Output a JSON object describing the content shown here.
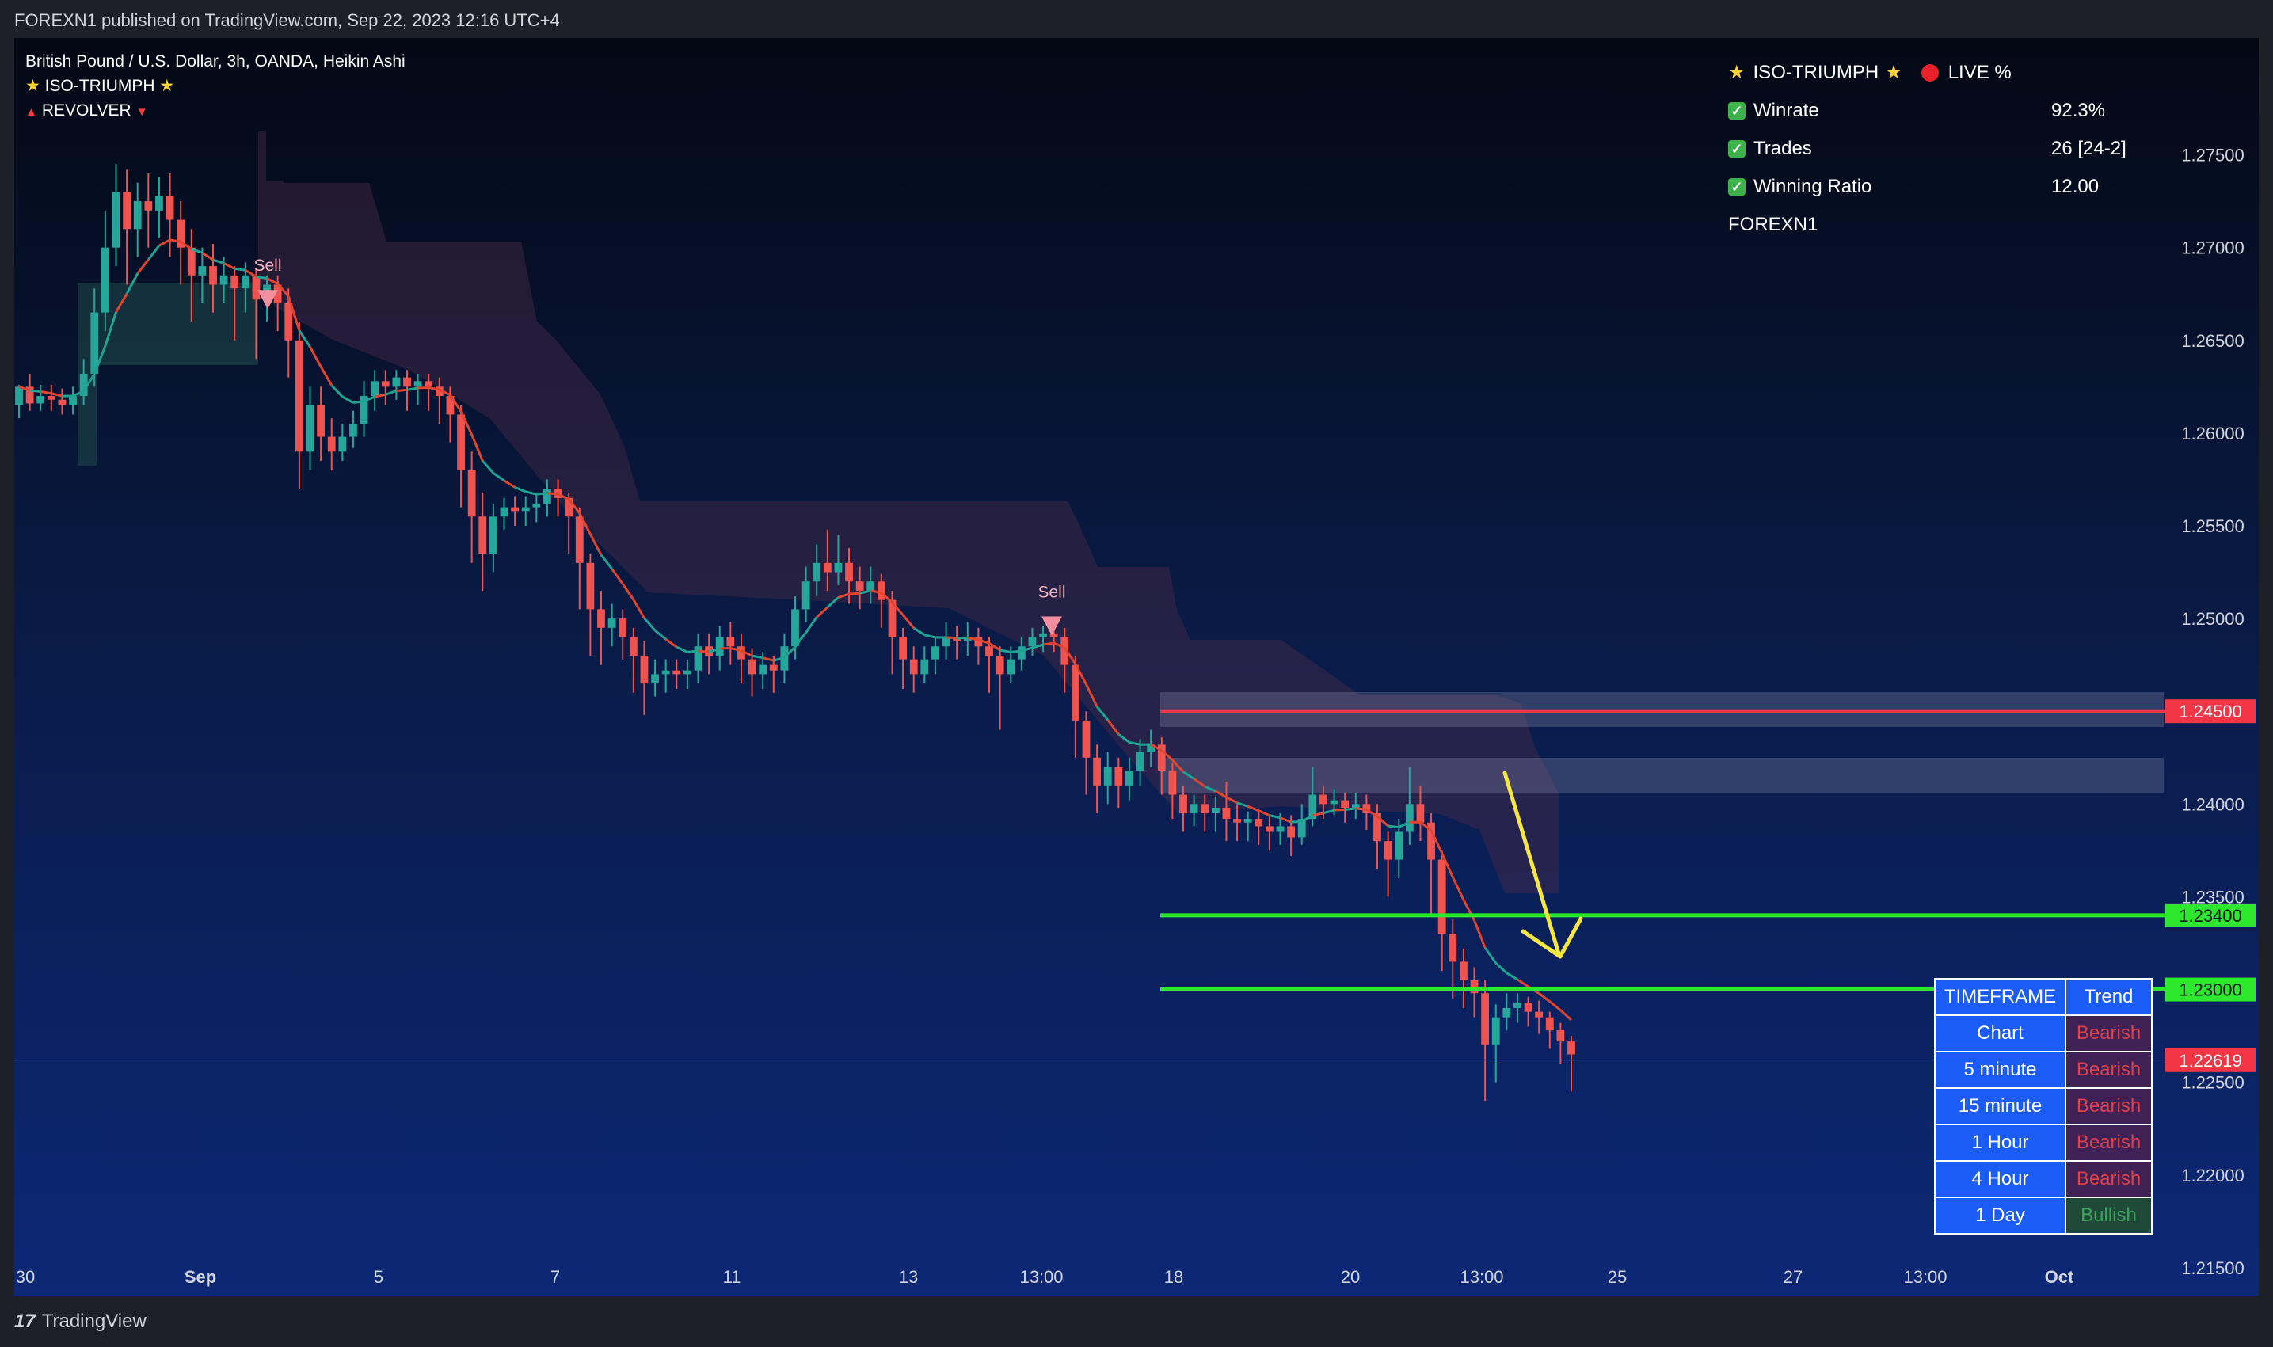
{
  "header": {
    "published": "FOREXN1 published on TradingView.com, Sep 22, 2023 12:16 UTC+4"
  },
  "legend": {
    "symbol": "British Pound / U.S. Dollar, 3h, OANDA, Heikin Ashi",
    "indicator_1": "ISO-TRIUMPH",
    "indicator_2": "REVOLVER"
  },
  "stats": {
    "title": "ISO-TRIUMPH",
    "live_label": "LIVE %",
    "rows": [
      {
        "label": "Winrate",
        "value": "92.3%"
      },
      {
        "label": "Trades",
        "value": "26 [24-2]"
      },
      {
        "label": "Winning Ratio",
        "value": "12.00"
      }
    ],
    "author": "FOREXN1"
  },
  "trend_table": {
    "headers": [
      "TIMEFRAME",
      "Trend"
    ],
    "rows": [
      {
        "tf": "Chart",
        "trend": "Bearish"
      },
      {
        "tf": "5 minute",
        "trend": "Bearish"
      },
      {
        "tf": "15 minute",
        "trend": "Bearish"
      },
      {
        "tf": "1 Hour",
        "trend": "Bearish"
      },
      {
        "tf": "4 Hour",
        "trend": "Bearish"
      },
      {
        "tf": "1 Day",
        "trend": "Bullish"
      }
    ]
  },
  "footer": {
    "brand": "TradingView",
    "brand_mark": "17"
  },
  "colors": {
    "bull": "#26a69a",
    "bear": "#ef5350",
    "resistance": "#f23645",
    "support": "#2ee830",
    "arrow": "#f5e642"
  },
  "chart_data": {
    "type": "line",
    "series_style": "heikin ashi candlesticks",
    "price_ticks": [
      "1.27500",
      "1.27000",
      "1.26500",
      "1.26000",
      "1.25500",
      "1.25000",
      "1.24000",
      "1.23500",
      "1.22500",
      "1.22000",
      "1.21500"
    ],
    "x_ticks": [
      "30",
      "Sep",
      "5",
      "7",
      "11",
      "13",
      "13:00",
      "18",
      "20",
      "13:00",
      "25",
      "27",
      "13:00",
      "Oct"
    ],
    "ylim": [
      1.2135,
      1.2813
    ],
    "horizontal_levels": [
      {
        "price": 1.245,
        "label": "1.24500",
        "color": "#f23645"
      },
      {
        "price": 1.234,
        "label": "1.23400",
        "color": "#2ee830"
      },
      {
        "price": 1.23,
        "label": "1.23000",
        "color": "#2ee830"
      }
    ],
    "current_price": {
      "price": 1.22619,
      "label": "1.22619"
    },
    "signals": [
      {
        "label": "Sell",
        "date": "Sep 2",
        "price": 1.2672
      },
      {
        "label": "Sell",
        "date": "Sep 13",
        "price": 1.2496
      }
    ],
    "candles": [
      [
        1.2615,
        1.2625,
        1.2608,
        1.2626
      ],
      [
        1.2625,
        1.2616,
        1.2612,
        1.2632
      ],
      [
        1.2616,
        1.262,
        1.2612,
        1.2626
      ],
      [
        1.262,
        1.2618,
        1.2612,
        1.2626
      ],
      [
        1.2618,
        1.2615,
        1.261,
        1.2624
      ],
      [
        1.2615,
        1.262,
        1.261,
        1.2625
      ],
      [
        1.262,
        1.2632,
        1.2615,
        1.264
      ],
      [
        1.2632,
        1.2665,
        1.2625,
        1.2678
      ],
      [
        1.2665,
        1.27,
        1.2655,
        1.272
      ],
      [
        1.27,
        1.273,
        1.269,
        1.2745
      ],
      [
        1.273,
        1.271,
        1.268,
        1.2742
      ],
      [
        1.271,
        1.2725,
        1.2695,
        1.2735
      ],
      [
        1.2725,
        1.272,
        1.27,
        1.274
      ],
      [
        1.272,
        1.2728,
        1.2705,
        1.2738
      ],
      [
        1.2728,
        1.2715,
        1.2695,
        1.274
      ],
      [
        1.2715,
        1.27,
        1.268,
        1.2725
      ],
      [
        1.27,
        1.2685,
        1.266,
        1.271
      ],
      [
        1.2685,
        1.269,
        1.267,
        1.27
      ],
      [
        1.269,
        1.268,
        1.2665,
        1.2702
      ],
      [
        1.268,
        1.2685,
        1.267,
        1.2695
      ],
      [
        1.2685,
        1.2678,
        1.265,
        1.269
      ],
      [
        1.2678,
        1.2685,
        1.2665,
        1.2692
      ],
      [
        1.2685,
        1.2672,
        1.264,
        1.2688
      ],
      [
        1.2672,
        1.268,
        1.266,
        1.2685
      ],
      [
        1.268,
        1.267,
        1.2655,
        1.2685
      ],
      [
        1.267,
        1.265,
        1.263,
        1.2678
      ],
      [
        1.265,
        1.259,
        1.257,
        1.266
      ],
      [
        1.259,
        1.2615,
        1.258,
        1.2625
      ],
      [
        1.2615,
        1.2598,
        1.2585,
        1.2625
      ],
      [
        1.2598,
        1.259,
        1.258,
        1.2608
      ],
      [
        1.259,
        1.2598,
        1.2585,
        1.2605
      ],
      [
        1.2598,
        1.2605,
        1.2592,
        1.2612
      ],
      [
        1.2605,
        1.262,
        1.2598,
        1.2628
      ],
      [
        1.262,
        1.2628,
        1.2612,
        1.2634
      ],
      [
        1.2628,
        1.2625,
        1.2615,
        1.2634
      ],
      [
        1.2625,
        1.263,
        1.2618,
        1.2634
      ],
      [
        1.263,
        1.2625,
        1.2612,
        1.2634
      ],
      [
        1.2625,
        1.2628,
        1.2615,
        1.2632
      ],
      [
        1.2628,
        1.2625,
        1.2612,
        1.2632
      ],
      [
        1.2625,
        1.262,
        1.2605,
        1.263
      ],
      [
        1.262,
        1.261,
        1.2595,
        1.2625
      ],
      [
        1.261,
        1.258,
        1.256,
        1.2615
      ],
      [
        1.258,
        1.2555,
        1.253,
        1.259
      ],
      [
        1.2555,
        1.2535,
        1.2515,
        1.2568
      ],
      [
        1.2535,
        1.2555,
        1.2525,
        1.2562
      ],
      [
        1.2555,
        1.256,
        1.2548,
        1.2565
      ],
      [
        1.256,
        1.2558,
        1.255,
        1.2566
      ],
      [
        1.2558,
        1.256,
        1.255,
        1.2566
      ],
      [
        1.256,
        1.2562,
        1.2552,
        1.2568
      ],
      [
        1.2562,
        1.257,
        1.2555,
        1.2575
      ],
      [
        1.257,
        1.2565,
        1.2555,
        1.2575
      ],
      [
        1.2565,
        1.2555,
        1.2535,
        1.2568
      ],
      [
        1.2555,
        1.253,
        1.2505,
        1.256
      ],
      [
        1.253,
        1.2505,
        1.248,
        1.2535
      ],
      [
        1.2505,
        1.2495,
        1.2475,
        1.2515
      ],
      [
        1.2495,
        1.25,
        1.2485,
        1.2508
      ],
      [
        1.25,
        1.249,
        1.2478,
        1.2505
      ],
      [
        1.249,
        1.248,
        1.246,
        1.2495
      ],
      [
        1.248,
        1.2465,
        1.2448,
        1.2488
      ],
      [
        1.2465,
        1.247,
        1.2458,
        1.2478
      ],
      [
        1.247,
        1.2472,
        1.246,
        1.2478
      ],
      [
        1.2472,
        1.247,
        1.2462,
        1.2478
      ],
      [
        1.247,
        1.2472,
        1.2462,
        1.2478
      ],
      [
        1.2472,
        1.2485,
        1.2465,
        1.2492
      ],
      [
        1.2485,
        1.248,
        1.247,
        1.2492
      ],
      [
        1.248,
        1.249,
        1.2472,
        1.2496
      ],
      [
        1.249,
        1.2485,
        1.2475,
        1.2498
      ],
      [
        1.2485,
        1.2478,
        1.2465,
        1.2492
      ],
      [
        1.2478,
        1.247,
        1.2458,
        1.2484
      ],
      [
        1.247,
        1.2475,
        1.2462,
        1.2482
      ],
      [
        1.2475,
        1.2472,
        1.246,
        1.248
      ],
      [
        1.2472,
        1.2485,
        1.2465,
        1.2492
      ],
      [
        1.2485,
        1.2505,
        1.2478,
        1.2512
      ],
      [
        1.2505,
        1.252,
        1.2498,
        1.2528
      ],
      [
        1.252,
        1.253,
        1.2512,
        1.254
      ],
      [
        1.253,
        1.2525,
        1.2515,
        1.2548
      ],
      [
        1.2525,
        1.253,
        1.2518,
        1.2545
      ],
      [
        1.253,
        1.252,
        1.2508,
        1.2538
      ],
      [
        1.252,
        1.2515,
        1.2505,
        1.2528
      ],
      [
        1.2515,
        1.252,
        1.2508,
        1.2528
      ],
      [
        1.252,
        1.251,
        1.2495,
        1.2524
      ],
      [
        1.251,
        1.249,
        1.247,
        1.2515
      ],
      [
        1.249,
        1.2478,
        1.2462,
        1.2495
      ],
      [
        1.2478,
        1.247,
        1.246,
        1.2485
      ],
      [
        1.247,
        1.2478,
        1.2465,
        1.2485
      ],
      [
        1.2478,
        1.2485,
        1.247,
        1.249
      ],
      [
        1.2485,
        1.249,
        1.2478,
        1.2498
      ],
      [
        1.249,
        1.2488,
        1.2478,
        1.2496
      ],
      [
        1.2488,
        1.249,
        1.248,
        1.2498
      ],
      [
        1.249,
        1.2485,
        1.2475,
        1.2495
      ],
      [
        1.2485,
        1.248,
        1.246,
        1.249
      ],
      [
        1.248,
        1.247,
        1.244,
        1.2485
      ],
      [
        1.247,
        1.2478,
        1.2465,
        1.2485
      ],
      [
        1.2478,
        1.2485,
        1.2472,
        1.249
      ],
      [
        1.2485,
        1.249,
        1.248,
        1.2495
      ],
      [
        1.249,
        1.2492,
        1.2482,
        1.2496
      ],
      [
        1.2492,
        1.249,
        1.2482,
        1.2498
      ],
      [
        1.249,
        1.2475,
        1.246,
        1.2495
      ],
      [
        1.2475,
        1.2445,
        1.2425,
        1.248
      ],
      [
        1.2445,
        1.2425,
        1.2405,
        1.245
      ],
      [
        1.2425,
        1.241,
        1.2395,
        1.2432
      ],
      [
        1.241,
        1.242,
        1.24,
        1.2428
      ],
      [
        1.242,
        1.241,
        1.2398,
        1.2425
      ],
      [
        1.241,
        1.2418,
        1.2402,
        1.2425
      ],
      [
        1.2418,
        1.2428,
        1.241,
        1.2435
      ],
      [
        1.2428,
        1.2432,
        1.242,
        1.244
      ],
      [
        1.2432,
        1.2418,
        1.2405,
        1.2436
      ],
      [
        1.2418,
        1.2405,
        1.2392,
        1.2422
      ],
      [
        1.2405,
        1.2395,
        1.2385,
        1.241
      ],
      [
        1.2395,
        1.24,
        1.2388,
        1.2405
      ],
      [
        1.24,
        1.2395,
        1.2385,
        1.2405
      ],
      [
        1.2395,
        1.2398,
        1.2385,
        1.2404
      ],
      [
        1.2398,
        1.2392,
        1.238,
        1.2412
      ],
      [
        1.2392,
        1.239,
        1.238,
        1.24
      ],
      [
        1.239,
        1.2392,
        1.238,
        1.2396
      ],
      [
        1.2392,
        1.2388,
        1.2378,
        1.2396
      ],
      [
        1.2388,
        1.2385,
        1.2375,
        1.2394
      ],
      [
        1.2385,
        1.2388,
        1.2378,
        1.2395
      ],
      [
        1.2388,
        1.2382,
        1.2372,
        1.2394
      ],
      [
        1.2382,
        1.2392,
        1.2378,
        1.24
      ],
      [
        1.2392,
        1.2405,
        1.2388,
        1.242
      ],
      [
        1.2405,
        1.24,
        1.2392,
        1.241
      ],
      [
        1.24,
        1.2402,
        1.2394,
        1.2408
      ],
      [
        1.2402,
        1.2398,
        1.239,
        1.2406
      ],
      [
        1.2398,
        1.24,
        1.2392,
        1.2406
      ],
      [
        1.24,
        1.2395,
        1.2386,
        1.2405
      ],
      [
        1.2395,
        1.238,
        1.2365,
        1.24
      ],
      [
        1.238,
        1.237,
        1.235,
        1.2385
      ],
      [
        1.237,
        1.2385,
        1.236,
        1.2392
      ],
      [
        1.2385,
        1.24,
        1.2378,
        1.242
      ],
      [
        1.24,
        1.239,
        1.238,
        1.241
      ],
      [
        1.239,
        1.237,
        1.234,
        1.2395
      ],
      [
        1.237,
        1.233,
        1.231,
        1.2375
      ],
      [
        1.233,
        1.2315,
        1.2295,
        1.2338
      ],
      [
        1.2315,
        1.2305,
        1.229,
        1.2322
      ],
      [
        1.2305,
        1.2298,
        1.2285,
        1.2312
      ],
      [
        1.2298,
        1.227,
        1.224,
        1.2305
      ],
      [
        1.227,
        1.2285,
        1.225,
        1.2292
      ],
      [
        1.2285,
        1.229,
        1.2278,
        1.2298
      ],
      [
        1.229,
        1.2293,
        1.2282,
        1.2298
      ],
      [
        1.2293,
        1.2288,
        1.228,
        1.2296
      ],
      [
        1.2288,
        1.2285,
        1.2276,
        1.2294
      ],
      [
        1.2285,
        1.2278,
        1.2268,
        1.2288
      ],
      [
        1.2278,
        1.2272,
        1.226,
        1.2282
      ],
      [
        1.2272,
        1.2265,
        1.2245,
        1.2275
      ]
    ]
  }
}
